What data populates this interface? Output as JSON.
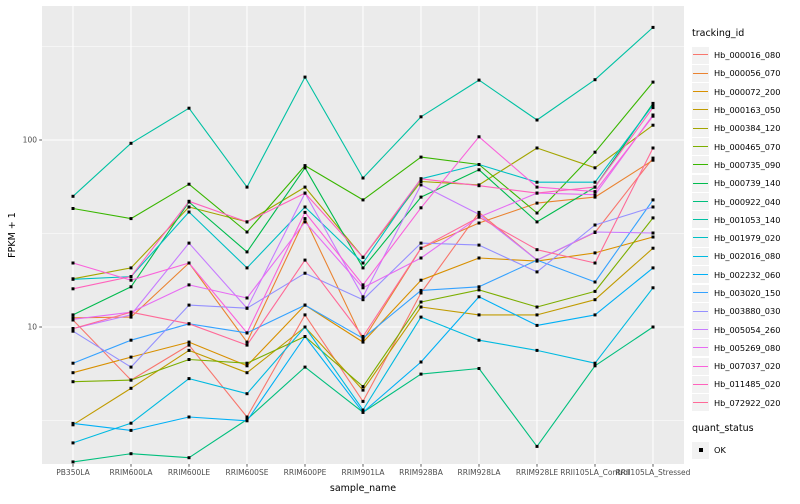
{
  "chart_data": {
    "type": "line",
    "title": "",
    "xlabel": "sample_name",
    "ylabel": "FPKM + 1",
    "y_scale": "log10",
    "ylim": [
      1.85,
      520
    ],
    "grid": "on",
    "legend_position": "right",
    "panel_color": "#EBEBEB",
    "gridline_color": "#FFFFFF",
    "tick_label_color": "#4D4D4D",
    "y_major_ticks": [
      {
        "label": "100",
        "value": 100
      },
      {
        "label": "10",
        "value": 10
      }
    ],
    "y_minor_tick_values": [
      316.23,
      31.62,
      3.162
    ],
    "categories": [
      "PB350LA",
      "RRIM600LA",
      "RRIM600LE",
      "RRIM600SE",
      "RRIM600PE",
      "RRIM901LA",
      "RRIM928BA",
      "RRIM928LA",
      "RRIM928LE",
      "RRII105LA_Control",
      "RRII105LA_Stressed"
    ],
    "series": [
      {
        "name": "Hb_000016_080",
        "color": "#F8766D",
        "values": [
          10.9,
          5.2,
          8.0,
          3.3,
          11.6,
          4.0,
          15.2,
          41,
          22.8,
          32,
          80
        ]
      },
      {
        "name": "Hb_000056_070",
        "color": "#EA8331",
        "values": [
          11.2,
          11.3,
          22,
          8.3,
          38,
          8.5,
          26.4,
          36,
          46,
          49.5,
          78
        ]
      },
      {
        "name": "Hb_000072_200",
        "color": "#D89000",
        "values": [
          5.7,
          6.9,
          8.3,
          6.2,
          13.1,
          8.3,
          17.8,
          23.4,
          22.5,
          24.9,
          30.3
        ]
      },
      {
        "name": "Hb_000163_050",
        "color": "#C09B00",
        "values": [
          3.0,
          4.7,
          7.5,
          5.7,
          10.0,
          4.6,
          12.8,
          11.6,
          11.6,
          14.0,
          26.4
        ]
      },
      {
        "name": "Hb_000384_120",
        "color": "#A3A500",
        "values": [
          18.1,
          20.7,
          43.8,
          36.5,
          56,
          23.6,
          60,
          57.5,
          90.6,
          71,
          120
        ]
      },
      {
        "name": "Hb_000465_070",
        "color": "#7CAE00",
        "values": [
          5.1,
          5.2,
          6.7,
          6.4,
          8.9,
          4.8,
          13.6,
          15.8,
          12.8,
          15.5,
          38.3
        ]
      },
      {
        "name": "Hb_000735_090",
        "color": "#39B600",
        "values": [
          43,
          38,
          58,
          32.2,
          73,
          47.8,
          81,
          74,
          40.7,
          86,
          204
        ]
      },
      {
        "name": "Hb_000739_140",
        "color": "#00BB4E",
        "values": [
          11.6,
          16.4,
          46.6,
          25.2,
          71,
          20.7,
          49.5,
          69.3,
          36.5,
          56,
          157
        ]
      },
      {
        "name": "Hb_000922_040",
        "color": "#00BF7D",
        "values": [
          1.9,
          2.1,
          2.0,
          3.2,
          6.1,
          3.5,
          5.6,
          6.0,
          2.3,
          6.2,
          10.0
        ]
      },
      {
        "name": "Hb_001053_140",
        "color": "#00C1A3",
        "values": [
          50,
          96,
          148,
          56,
          217,
          62.6,
          133,
          209,
          128,
          210,
          400
        ]
      },
      {
        "name": "Hb_001979_020",
        "color": "#00BFC4",
        "values": [
          18,
          18.6,
          41.2,
          20.7,
          43.8,
          22,
          62,
          74,
          59.5,
          59.5,
          154
        ]
      },
      {
        "name": "Hb_002016_080",
        "color": "#00BAE0",
        "values": [
          2.4,
          3.06,
          5.3,
          4.4,
          10.0,
          3.6,
          11.3,
          8.5,
          7.5,
          6.4,
          16.2
        ]
      },
      {
        "name": "Hb_002232_060",
        "color": "#00B0F6",
        "values": [
          3.05,
          2.8,
          3.3,
          3.15,
          8.9,
          3.5,
          6.5,
          14.5,
          10.2,
          11.6,
          20.7
        ]
      },
      {
        "name": "Hb_003020_150",
        "color": "#35A2FF",
        "values": [
          6.4,
          8.5,
          10.4,
          9.3,
          13.1,
          8.7,
          15.7,
          16.4,
          22.8,
          17.4,
          47.8
        ]
      },
      {
        "name": "Hb_003880_030",
        "color": "#9590FF",
        "values": [
          9.5,
          6.1,
          13.1,
          12.6,
          19.4,
          14.0,
          28.1,
          27.4,
          19.7,
          35.1,
          43.8
        ]
      },
      {
        "name": "Hb_005054_260",
        "color": "#C77CFF",
        "values": [
          9.8,
          11.6,
          28.1,
          12.6,
          52,
          14.5,
          57.5,
          40,
          22.8,
          32.2,
          31.8
        ]
      },
      {
        "name": "Hb_005269_080",
        "color": "#E76BF3",
        "values": [
          11.0,
          12.0,
          16.8,
          14.3,
          36.5,
          16.2,
          23.4,
          38.7,
          52,
          51,
          136
        ]
      },
      {
        "name": "Hb_007037_020",
        "color": "#FA62DB",
        "values": [
          22,
          17.8,
          22,
          9.3,
          41,
          16.8,
          43.4,
          104,
          56,
          53,
          134
        ]
      },
      {
        "name": "Hb_011485_020",
        "color": "#FF62BC",
        "values": [
          16,
          18.6,
          47,
          36.5,
          52,
          23.6,
          62,
          57,
          52,
          56,
          149
        ]
      },
      {
        "name": "Hb_072922_020",
        "color": "#FF6A98",
        "values": [
          9.8,
          12.0,
          10.4,
          8.0,
          22.8,
          8.9,
          26.4,
          38.7,
          25.9,
          22,
          90.6
        ]
      }
    ],
    "legend": {
      "tracking_id_title": "tracking_id",
      "quant_status_title": "quant_status",
      "quant_status_items": [
        {
          "label": "OK",
          "marker": "black-square"
        }
      ]
    },
    "point_marker": {
      "shape": "square",
      "color": "#000000",
      "size": 3
    }
  }
}
